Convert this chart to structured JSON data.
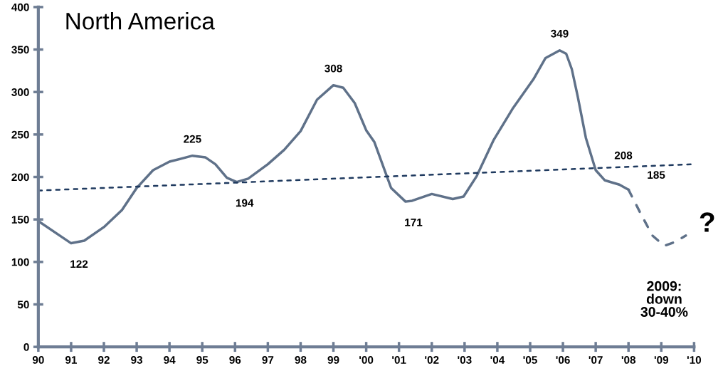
{
  "chart_data": {
    "type": "line",
    "title": "North America",
    "xlim": [
      1990,
      2010
    ],
    "xticks": [
      {
        "value": 1990,
        "label": "90"
      },
      {
        "value": 1991,
        "label": "91"
      },
      {
        "value": 1992,
        "label": "92"
      },
      {
        "value": 1993,
        "label": "93"
      },
      {
        "value": 1994,
        "label": "94"
      },
      {
        "value": 1995,
        "label": "95"
      },
      {
        "value": 1996,
        "label": "96"
      },
      {
        "value": 1997,
        "label": "97"
      },
      {
        "value": 1998,
        "label": "98"
      },
      {
        "value": 1999,
        "label": "99"
      },
      {
        "value": 2000,
        "label": "'00"
      },
      {
        "value": 2001,
        "label": "'01"
      },
      {
        "value": 2002,
        "label": "'02"
      },
      {
        "value": 2003,
        "label": "'03"
      },
      {
        "value": 2004,
        "label": "'04"
      },
      {
        "value": 2005,
        "label": "'05"
      },
      {
        "value": 2006,
        "label": "'06"
      },
      {
        "value": 2007,
        "label": "'07"
      },
      {
        "value": 2008,
        "label": "'08"
      },
      {
        "value": 2009,
        "label": "'09"
      },
      {
        "value": 2010,
        "label": "'10"
      }
    ],
    "ylim": [
      0,
      400
    ],
    "yticks": [
      0,
      50,
      100,
      150,
      200,
      250,
      300,
      350,
      400
    ],
    "grid": false,
    "legend": false,
    "marker": "none",
    "series": [
      {
        "color": "#5f7189",
        "line_style": "solid",
        "x": [
          1990,
          1991,
          1991.4,
          1992,
          1992.55,
          1993,
          1993.5,
          1994,
          1994.7,
          1995.1,
          1995.4,
          1995.75,
          1996.05,
          1996.4,
          1997,
          1997.5,
          1998,
          1998.5,
          1999,
          1999.3,
          1999.65,
          2000,
          2000.25,
          2000.76,
          2001.2,
          2001.4,
          2002,
          2002.64,
          2002.97,
          2003.37,
          2003.88,
          2004.46,
          2005.1,
          2005.47,
          2005.9,
          2006.1,
          2006.27,
          2006.45,
          2006.7,
          2007,
          2007.28,
          2007.72,
          2008
        ],
        "values": [
          148,
          122,
          125,
          141,
          161,
          187,
          208,
          218,
          225,
          223,
          215,
          199,
          194,
          198,
          215,
          232,
          254,
          291,
          308,
          305,
          287,
          255,
          241,
          187,
          171,
          172,
          180,
          174,
          177,
          201,
          243,
          280,
          315,
          340,
          349,
          345,
          327,
          295,
          246,
          208,
          196,
          191,
          185
        ]
      },
      {
        "color": "#5f7189",
        "line_style": "dashed",
        "x": [
          2008,
          2008.37,
          2008.73,
          2009.09,
          2009.38,
          2009.75
        ],
        "values": [
          185,
          157,
          131,
          119,
          123,
          131
        ]
      },
      {
        "color": "#1f3a5f",
        "line_style": "dotted",
        "x": [
          1990,
          2010
        ],
        "values": [
          184,
          215
        ]
      }
    ],
    "annotations": [
      {
        "text": "122",
        "x": 1991,
        "y": 122
      },
      {
        "text": "225",
        "x": 1994.7,
        "y": 225
      },
      {
        "text": "194",
        "x": 1996.05,
        "y": 194
      },
      {
        "text": "308",
        "x": 1999,
        "y": 308
      },
      {
        "text": "171",
        "x": 2001.2,
        "y": 171
      },
      {
        "text": "349",
        "x": 2005.9,
        "y": 349
      },
      {
        "text": "208",
        "x": 2007,
        "y": 208
      },
      {
        "text": "185",
        "x": 2008,
        "y": 185
      },
      {
        "text": "2009:\ndown\n30-40%",
        "x": 2009.09,
        "y": 119
      },
      "?"
    ]
  }
}
